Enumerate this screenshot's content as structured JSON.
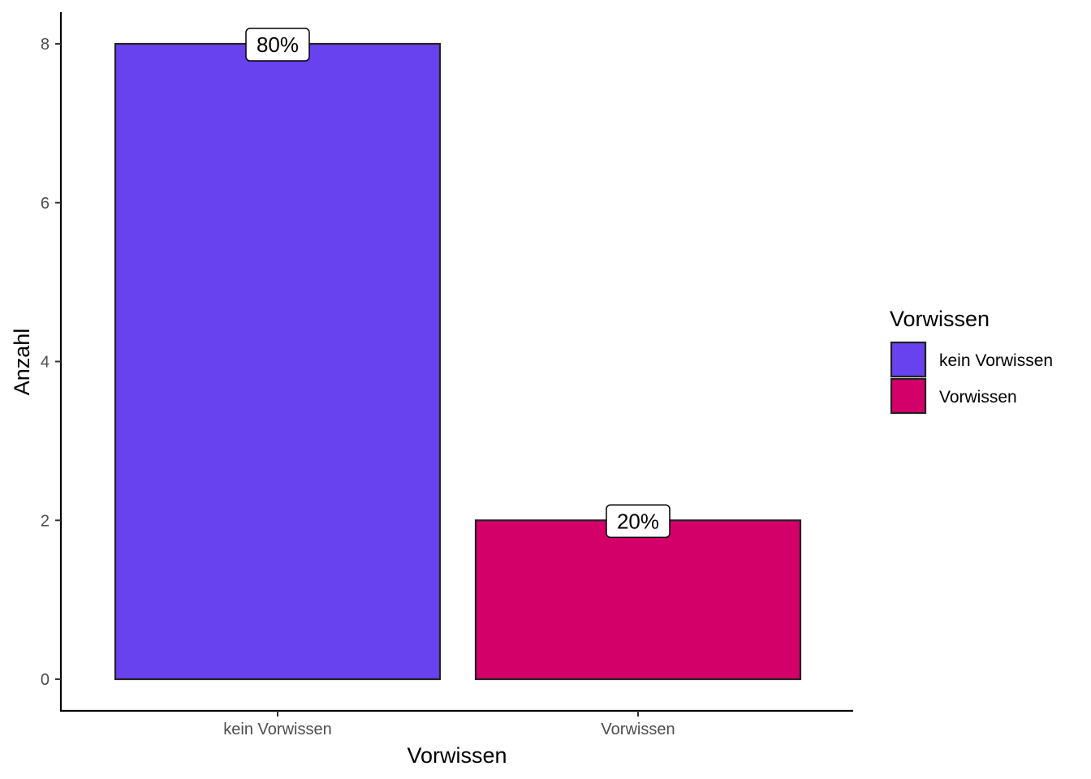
{
  "chart_data": {
    "type": "bar",
    "categories": [
      "kein Vorwissen",
      "Vorwissen"
    ],
    "values": [
      8,
      2
    ],
    "data_labels": [
      "80%",
      "20%"
    ],
    "colors": [
      "#6842EE",
      "#D4006A"
    ],
    "xlabel": "Vorwissen",
    "ylabel": "Anzahl",
    "ylim": [
      0,
      8
    ],
    "yticks": [
      0,
      2,
      4,
      6,
      8
    ],
    "grid": false,
    "legend": {
      "title": "Vorwissen",
      "position": "right",
      "entries": [
        {
          "label": "kein Vorwissen",
          "color": "#6842EE"
        },
        {
          "label": "Vorwissen",
          "color": "#D4006A"
        }
      ]
    }
  }
}
